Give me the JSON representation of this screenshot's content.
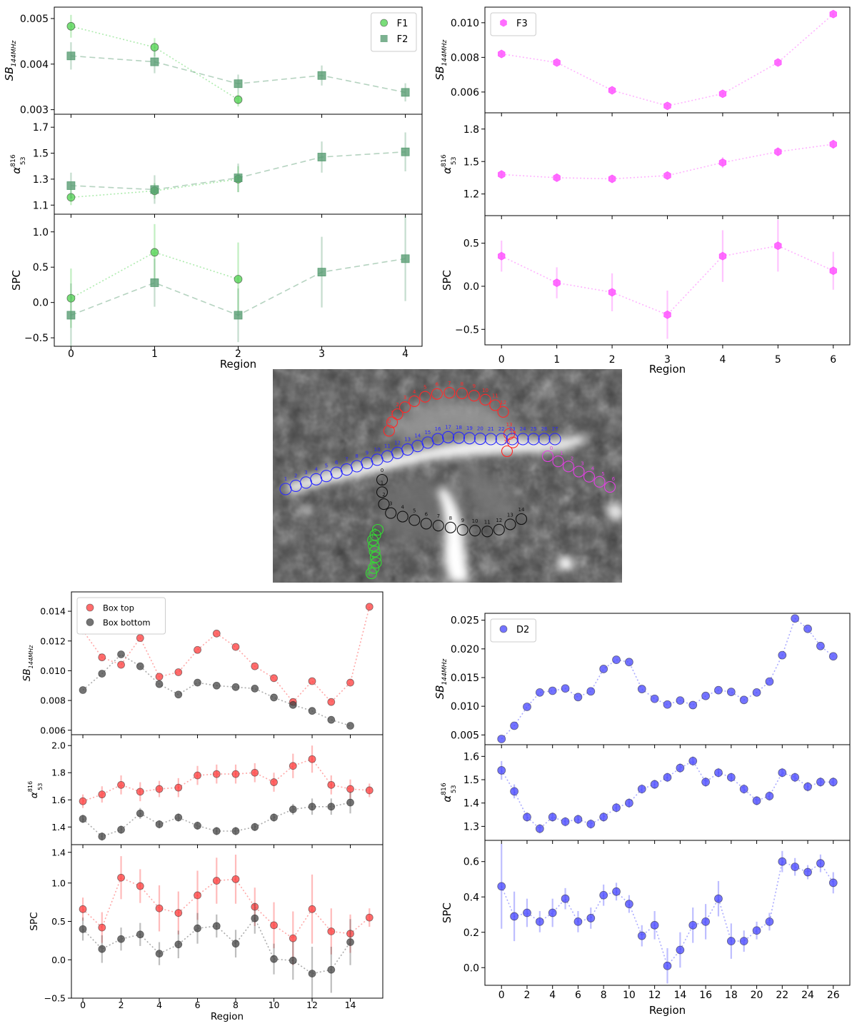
{
  "chart_data": [
    {
      "id": "F",
      "type": "scatter",
      "xlabel": "Region",
      "xticks": [
        0,
        1,
        2,
        3,
        4
      ],
      "xlim": [
        -0.2,
        4.2
      ],
      "legend": "top-right",
      "series": [
        {
          "name": "F1",
          "color": "#4cd24c",
          "marker": "circle",
          "line": "dotted",
          "x": [
            0,
            1,
            2
          ],
          "sb": [
            0.00483,
            0.00437,
            0.00322
          ],
          "sb_err": [
            0.00025,
            0.0002,
            0.00015
          ],
          "alpha": [
            1.16,
            1.21,
            1.3
          ],
          "alpha_err": [
            0.06,
            0.06,
            0.1
          ],
          "spc": [
            0.06,
            0.71,
            0.33
          ],
          "spc_err": [
            0.42,
            0.4,
            0.52
          ]
        },
        {
          "name": "F2",
          "color": "#5a9e74",
          "marker": "square",
          "line": "dashed",
          "x": [
            0,
            1,
            2,
            3,
            4
          ],
          "sb": [
            0.00418,
            0.00405,
            0.00357,
            0.00375,
            0.00338
          ],
          "sb_err": [
            0.0003,
            0.00025,
            0.0002,
            0.00022,
            0.0002
          ],
          "alpha": [
            1.25,
            1.22,
            1.31,
            1.47,
            1.51
          ],
          "alpha_err": [
            0.1,
            0.11,
            0.11,
            0.12,
            0.15
          ],
          "spc": [
            -0.18,
            0.28,
            -0.18,
            0.43,
            0.62
          ],
          "spc_err": [
            0.45,
            0.34,
            0.38,
            0.5,
            0.6
          ]
        }
      ],
      "panels": [
        {
          "key": "sb",
          "ylabel_main": "SB",
          "ylabel_sub": "144MHz",
          "ylim": [
            0.0029,
            0.00525
          ],
          "yticks": [
            0.003,
            0.004,
            0.005
          ],
          "ytick_labels": [
            "0.003",
            "0.004",
            "0.005"
          ]
        },
        {
          "key": "alpha",
          "ylabel_main": "α",
          "ylabel_sup": "816",
          "ylabel_sub": "53",
          "ylim": [
            1.03,
            1.8
          ],
          "yticks": [
            1.1,
            1.3,
            1.5,
            1.7
          ],
          "ytick_labels": [
            "1.1",
            "1.3",
            "1.5",
            "1.7"
          ]
        },
        {
          "key": "spc",
          "ylabel_main": "SPC",
          "ylim": [
            -0.62,
            1.25
          ],
          "yticks": [
            -0.5,
            0.0,
            0.5,
            1.0
          ],
          "ytick_labels": [
            "−0.5",
            "0.0",
            "0.5",
            "1.0"
          ]
        }
      ]
    },
    {
      "id": "F3",
      "type": "scatter",
      "xlabel": "Region",
      "xticks": [
        0,
        1,
        2,
        3,
        4,
        5,
        6
      ],
      "xlim": [
        -0.3,
        6.3
      ],
      "legend": "top-left",
      "series": [
        {
          "name": "F3",
          "color": "#ff55ff",
          "marker": "hexagon",
          "line": "dotted",
          "x": [
            0,
            1,
            2,
            3,
            4,
            5,
            6
          ],
          "sb": [
            0.0082,
            0.0077,
            0.0061,
            0.0052,
            0.0059,
            0.0077,
            0.0105
          ],
          "sb_err": [
            0.0001,
            0.0001,
            0.0001,
            0.0001,
            0.0001,
            0.0001,
            0.0001
          ],
          "alpha": [
            1.38,
            1.35,
            1.34,
            1.37,
            1.49,
            1.59,
            1.66
          ],
          "alpha_err": [
            0.03,
            0.03,
            0.03,
            0.03,
            0.05,
            0.04,
            0.04
          ],
          "spc": [
            0.35,
            0.04,
            -0.07,
            -0.33,
            0.35,
            0.47,
            0.18
          ],
          "spc_err": [
            0.18,
            0.18,
            0.22,
            0.28,
            0.3,
            0.3,
            0.22
          ]
        }
      ],
      "panels": [
        {
          "key": "sb",
          "ylabel_main": "SB",
          "ylabel_sub": "144MHz",
          "ylim": [
            0.0048,
            0.0109
          ],
          "yticks": [
            0.006,
            0.008,
            0.01
          ],
          "ytick_labels": [
            "0.006",
            "0.008",
            "0.010"
          ]
        },
        {
          "key": "alpha",
          "ylabel_main": "α",
          "ylabel_sup": "816",
          "ylabel_sub": "53",
          "ylim": [
            1.0,
            1.95
          ],
          "yticks": [
            1.2,
            1.5,
            1.8
          ],
          "ytick_labels": [
            "1.2",
            "1.5",
            "1.8"
          ]
        },
        {
          "key": "spc",
          "ylabel_main": "SPC",
          "ylim": [
            -0.68,
            0.82
          ],
          "yticks": [
            -0.5,
            0.0,
            0.5
          ],
          "ytick_labels": [
            "−0.5",
            "0.0",
            "0.5"
          ]
        }
      ]
    },
    {
      "id": "Box",
      "type": "scatter",
      "xlabel": "Region",
      "xticks": [
        0,
        2,
        4,
        6,
        8,
        10,
        12,
        14
      ],
      "xlim": [
        -0.6,
        15.7
      ],
      "legend": "top-left",
      "series": [
        {
          "name": "Box top",
          "color": "#ff3b3b",
          "marker": "circle",
          "line": "dotted",
          "x": [
            0,
            1,
            2,
            3,
            4,
            5,
            6,
            7,
            8,
            9,
            10,
            11,
            12,
            13,
            14,
            15
          ],
          "sb": [
            0.0127,
            0.0109,
            0.0104,
            0.0122,
            0.0096,
            0.0099,
            0.0114,
            0.0125,
            0.0116,
            0.0103,
            0.0095,
            0.0079,
            0.0093,
            0.0079,
            0.0092,
            0.0143
          ],
          "alpha": [
            1.59,
            1.64,
            1.71,
            1.66,
            1.68,
            1.69,
            1.78,
            1.79,
            1.79,
            1.8,
            1.73,
            1.85,
            1.9,
            1.71,
            1.68,
            1.67
          ],
          "alpha_err": [
            0.05,
            0.06,
            0.07,
            0.07,
            0.06,
            0.07,
            0.07,
            0.07,
            0.07,
            0.07,
            0.07,
            0.09,
            0.1,
            0.07,
            0.07,
            0.05
          ],
          "spc": [
            0.66,
            0.42,
            1.07,
            0.96,
            0.67,
            0.61,
            0.84,
            1.03,
            1.05,
            0.69,
            0.45,
            0.28,
            0.66,
            0.37,
            0.34,
            0.55
          ],
          "spc_err": [
            0.15,
            0.2,
            0.28,
            0.22,
            0.3,
            0.28,
            0.32,
            0.3,
            0.32,
            0.25,
            0.3,
            0.35,
            0.45,
            0.3,
            0.25,
            0.12
          ]
        },
        {
          "name": "Box bottom",
          "color": "#444444",
          "marker": "circle",
          "line": "dotted",
          "x": [
            0,
            1,
            2,
            3,
            4,
            5,
            6,
            7,
            8,
            9,
            10,
            11,
            12,
            13,
            14
          ],
          "sb": [
            0.0087,
            0.0098,
            0.0111,
            0.0103,
            0.0091,
            0.0084,
            0.0092,
            0.009,
            0.0089,
            0.0088,
            0.0082,
            0.0077,
            0.0073,
            0.0067,
            0.0063
          ],
          "alpha": [
            1.46,
            1.33,
            1.38,
            1.5,
            1.42,
            1.47,
            1.41,
            1.37,
            1.37,
            1.4,
            1.47,
            1.53,
            1.55,
            1.55,
            1.58
          ],
          "alpha_err": [
            0.03,
            0.03,
            0.03,
            0.04,
            0.03,
            0.03,
            0.03,
            0.03,
            0.03,
            0.03,
            0.03,
            0.04,
            0.06,
            0.06,
            0.08
          ],
          "spc": [
            0.4,
            0.14,
            0.27,
            0.33,
            0.08,
            0.2,
            0.41,
            0.44,
            0.21,
            0.54,
            0.01,
            -0.01,
            -0.18,
            -0.13,
            0.23
          ],
          "spc_err": [
            0.15,
            0.18,
            0.15,
            0.15,
            0.15,
            0.18,
            0.2,
            0.15,
            0.18,
            0.2,
            0.2,
            0.25,
            0.35,
            0.3,
            0.3
          ]
        }
      ],
      "panels": [
        {
          "key": "sb",
          "ylabel_main": "SB",
          "ylabel_sub": "144MHz",
          "ylim": [
            0.0057,
            0.0153
          ],
          "yticks": [
            0.006,
            0.008,
            0.01,
            0.012,
            0.014
          ],
          "ytick_labels": [
            "0.006",
            "0.008",
            "0.010",
            "0.012",
            "0.014"
          ]
        },
        {
          "key": "alpha",
          "ylabel_main": "α",
          "ylabel_sup": "816",
          "ylabel_sub": "53",
          "ylim": [
            1.27,
            2.08
          ],
          "yticks": [
            1.4,
            1.6,
            1.8,
            2.0
          ],
          "ytick_labels": [
            "1.4",
            "1.6",
            "1.8",
            "2.0"
          ]
        },
        {
          "key": "spc",
          "ylabel_main": "SPC",
          "ylim": [
            -0.5,
            1.5
          ],
          "yticks": [
            -0.5,
            0.0,
            0.5,
            1.0
          ],
          "ytick_labels": [
            "−0.5",
            "0.0",
            "0.5",
            "1.0"
          ],
          "extra_ytick": 1.4,
          "extra_ytick_label": "1.4"
        }
      ]
    },
    {
      "id": "D2",
      "type": "scatter",
      "xlabel": "Region",
      "xticks": [
        0,
        2,
        4,
        6,
        8,
        10,
        12,
        14,
        16,
        18,
        20,
        22,
        24,
        26
      ],
      "xlim": [
        -1.3,
        27.3
      ],
      "legend": "top-left",
      "series": [
        {
          "name": "D2",
          "color": "#4444ff",
          "marker": "circle",
          "line": "dotted",
          "x": [
            0,
            1,
            2,
            3,
            4,
            5,
            6,
            7,
            8,
            9,
            10,
            11,
            12,
            13,
            14,
            15,
            16,
            17,
            18,
            19,
            20,
            21,
            22,
            23,
            24,
            25,
            26
          ],
          "sb": [
            0.0043,
            0.0066,
            0.0099,
            0.0124,
            0.0127,
            0.0131,
            0.0116,
            0.0126,
            0.0165,
            0.0181,
            0.0177,
            0.013,
            0.0113,
            0.0103,
            0.011,
            0.0102,
            0.0118,
            0.0128,
            0.0125,
            0.0111,
            0.0124,
            0.0143,
            0.0189,
            0.0253,
            0.0235,
            0.0205,
            0.0187
          ],
          "alpha": [
            1.54,
            1.45,
            1.34,
            1.29,
            1.34,
            1.32,
            1.33,
            1.31,
            1.34,
            1.38,
            1.4,
            1.46,
            1.48,
            1.51,
            1.55,
            1.58,
            1.49,
            1.53,
            1.51,
            1.46,
            1.41,
            1.43,
            1.53,
            1.51,
            1.47,
            1.49,
            1.49
          ],
          "alpha_err": [
            0.04,
            0.03,
            0.02,
            0.02,
            0.02,
            0.02,
            0.02,
            0.02,
            0.02,
            0.02,
            0.02,
            0.02,
            0.02,
            0.02,
            0.02,
            0.02,
            0.02,
            0.02,
            0.02,
            0.02,
            0.02,
            0.02,
            0.02,
            0.02,
            0.02,
            0.02,
            0.02
          ],
          "spc": [
            0.46,
            0.29,
            0.31,
            0.26,
            0.31,
            0.39,
            0.26,
            0.28,
            0.41,
            0.43,
            0.36,
            0.18,
            0.24,
            0.01,
            0.1,
            0.24,
            0.26,
            0.39,
            0.15,
            0.15,
            0.21,
            0.26,
            0.6,
            0.57,
            0.54,
            0.59,
            0.48
          ],
          "spc_err": [
            0.24,
            0.14,
            0.08,
            0.06,
            0.08,
            0.06,
            0.06,
            0.06,
            0.06,
            0.05,
            0.05,
            0.06,
            0.08,
            0.1,
            0.1,
            0.1,
            0.1,
            0.1,
            0.1,
            0.06,
            0.05,
            0.05,
            0.06,
            0.05,
            0.04,
            0.05,
            0.06
          ]
        }
      ],
      "panels": [
        {
          "key": "sb",
          "ylabel_main": "SB",
          "ylabel_sub": "144MHz",
          "ylim": [
            0.0033,
            0.0262
          ],
          "yticks": [
            0.005,
            0.01,
            0.015,
            0.02,
            0.025
          ],
          "ytick_labels": [
            "0.005",
            "0.010",
            "0.015",
            "0.020",
            "0.025"
          ]
        },
        {
          "key": "alpha",
          "ylabel_main": "α",
          "ylabel_sup": "816",
          "ylabel_sub": "53",
          "ylim": [
            1.24,
            1.65
          ],
          "yticks": [
            1.3,
            1.4,
            1.5,
            1.6
          ],
          "ytick_labels": [
            "1.3",
            "1.4",
            "1.5",
            "1.6"
          ]
        },
        {
          "key": "spc",
          "ylabel_main": "SPC",
          "ylim": [
            -0.1,
            0.72
          ],
          "yticks": [
            0.0,
            0.2,
            0.4,
            0.6
          ],
          "ytick_labels": [
            "0.0",
            "0.2",
            "0.4",
            "0.6"
          ]
        }
      ]
    }
  ],
  "image_panel": {
    "tracks": [
      {
        "color": "#ff2a2a",
        "labels": [
          "0",
          "1",
          "2",
          "3",
          "4",
          "5",
          "6",
          "7",
          "8",
          "9",
          "10",
          "11",
          "12",
          "13",
          "14",
          "15"
        ]
      },
      {
        "color": "#2a2aff",
        "labels": [
          "1",
          "2",
          "3",
          "4",
          "5",
          "6",
          "7",
          "8",
          "9",
          "10",
          "11",
          "12",
          "13",
          "14",
          "15",
          "16",
          "17",
          "18",
          "19",
          "20",
          "21",
          "22",
          "23",
          "24",
          "25",
          "26",
          "27"
        ]
      },
      {
        "color": "#111111",
        "labels": [
          "0",
          "1",
          "2",
          "3",
          "4",
          "5",
          "6",
          "7",
          "8",
          "9",
          "10",
          "11",
          "12",
          "13",
          "14"
        ]
      },
      {
        "color": "#e040e0",
        "labels": [
          "0",
          "1",
          "2",
          "3",
          "4",
          "5",
          "6"
        ]
      },
      {
        "color": "#33dd33",
        "labels": [
          "0",
          "1",
          "2",
          "3",
          "4",
          "5",
          "6",
          "7",
          "8"
        ]
      }
    ]
  }
}
